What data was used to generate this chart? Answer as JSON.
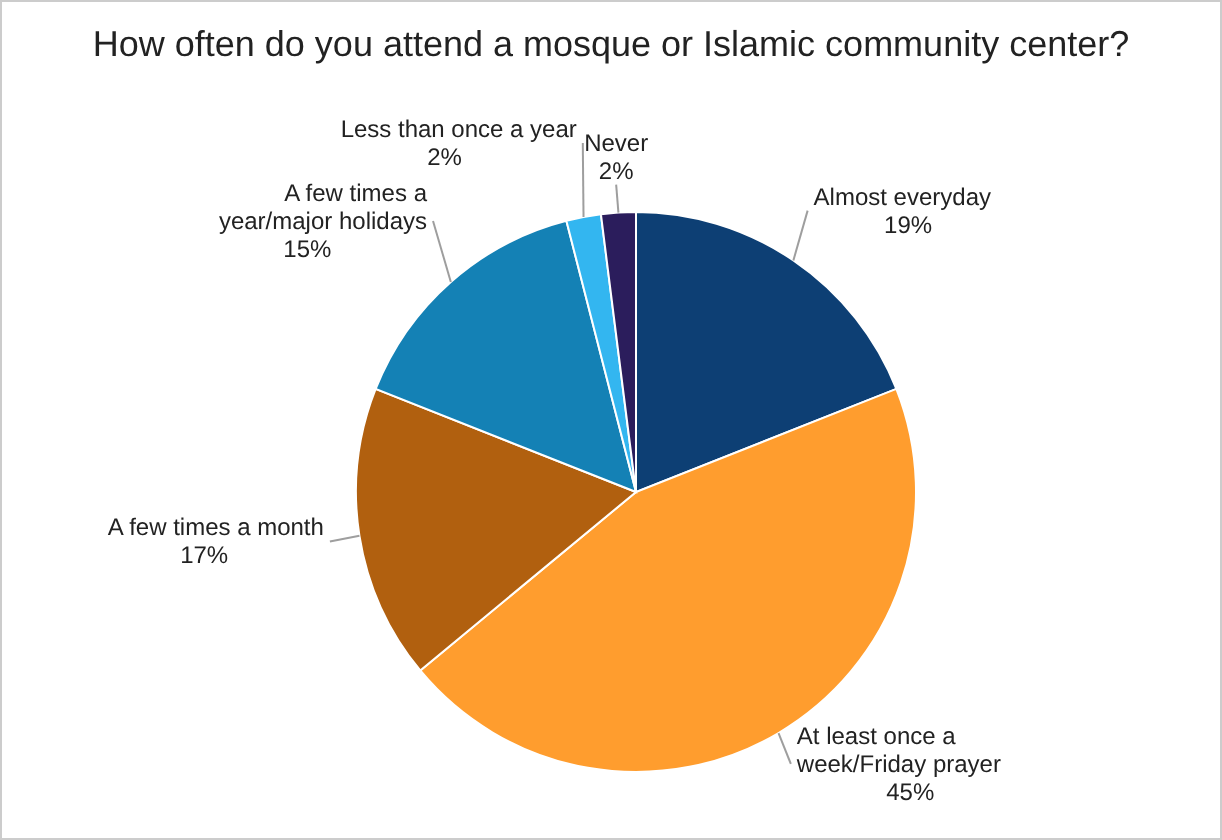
{
  "chart_data": {
    "type": "pie",
    "title": "How often do you attend a mosque or Islamic community center?",
    "categories": [
      "Almost everyday",
      "At least once a week/Friday prayer",
      "A few times a month",
      "A few times a year/major holidays",
      "Less than once a year",
      "Never"
    ],
    "values": [
      19,
      45,
      17,
      15,
      2,
      2
    ],
    "colors": [
      "#0d3f74",
      "#ff9d2e",
      "#b1600f",
      "#1481b5",
      "#33b6f0",
      "#2b1d5c"
    ],
    "value_labels": [
      "19%",
      "45%",
      "17%",
      "15%",
      "2%",
      "2%"
    ]
  }
}
